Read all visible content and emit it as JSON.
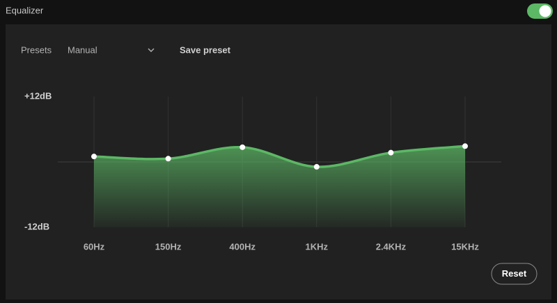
{
  "header": {
    "title": "Equalizer",
    "toggle_on": true
  },
  "presets": {
    "label": "Presets",
    "value": "Manual",
    "save": "Save preset"
  },
  "chart_data": {
    "type": "area",
    "categories": [
      "60Hz",
      "150Hz",
      "400Hz",
      "1KHz",
      "2.4KHz",
      "15KHz"
    ],
    "values": [
      1.0,
      0.6,
      2.7,
      -0.9,
      1.7,
      2.9
    ],
    "color": "#5cb865",
    "ylim": [
      -12,
      12
    ],
    "yticks": [
      {
        "value": 12,
        "label": "+12dB"
      },
      {
        "value": -12,
        "label": "-12dB"
      }
    ]
  },
  "reset": "Reset"
}
